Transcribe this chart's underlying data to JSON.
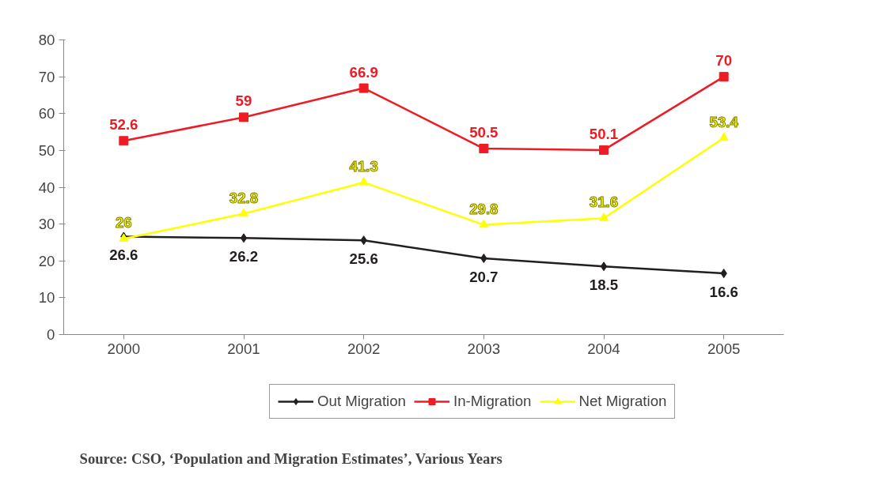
{
  "chart_data": {
    "type": "line",
    "categories": [
      "2000",
      "2001",
      "2002",
      "2003",
      "2004",
      "2005"
    ],
    "series": [
      {
        "name": "Out Migration",
        "color": "#231f20",
        "marker": "diamond",
        "values": [
          26.6,
          26.2,
          25.6,
          20.7,
          18.5,
          16.6
        ]
      },
      {
        "name": "In-Migration",
        "color": "#ed1c24",
        "marker": "square",
        "values": [
          52.6,
          59,
          66.9,
          50.5,
          50.1,
          70
        ]
      },
      {
        "name": "Net Migration",
        "color": "#ffff00",
        "marker": "triangle",
        "values": [
          26,
          32.8,
          41.3,
          29.8,
          31.6,
          53.4
        ]
      }
    ],
    "ylim": [
      0,
      80
    ],
    "yticks": [
      0,
      10,
      20,
      30,
      40,
      50,
      60,
      70,
      80
    ],
    "grid": false,
    "legend": "bottom",
    "data_labels": true,
    "annotations": [
      "Source: CSO, ‘Population and Migration Estimates’, Various Years"
    ]
  }
}
